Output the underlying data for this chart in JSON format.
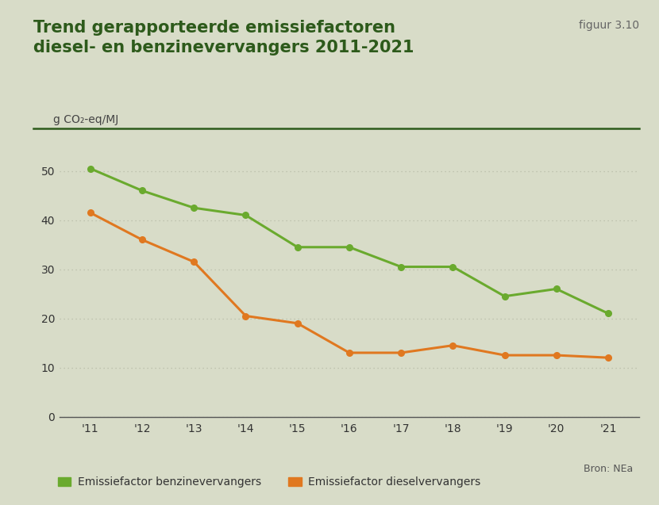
{
  "title_line1": "Trend gerapporteerde emissiefactoren",
  "title_line2": "diesel- en benzinevervangers 2011-2021",
  "figuur_label": "figuur 3.10",
  "years": [
    2011,
    2012,
    2013,
    2014,
    2015,
    2016,
    2017,
    2018,
    2019,
    2020,
    2021
  ],
  "year_labels": [
    "'11",
    "'12",
    "'13",
    "'14",
    "'15",
    "'16",
    "'17",
    "'18",
    "'19",
    "'20",
    "'21"
  ],
  "benzine_values": [
    50.5,
    46.0,
    42.5,
    41.0,
    34.5,
    34.5,
    30.5,
    30.5,
    24.5,
    26.0,
    21.0
  ],
  "diesel_values": [
    41.5,
    36.0,
    31.5,
    20.5,
    19.0,
    13.0,
    13.0,
    14.5,
    12.5,
    12.5,
    12.0
  ],
  "benzine_color": "#6aaa2e",
  "diesel_color": "#e07820",
  "background_color": "#d8dcc8",
  "title_color": "#2d5a1b",
  "figuur_color": "#666666",
  "ylabel_text": "g CO₂-eq/MJ",
  "yticks": [
    0,
    10,
    20,
    30,
    40,
    50
  ],
  "ylim": [
    0,
    55
  ],
  "grid_color": "#b8bca8",
  "legend_benzine": "Emissiefactor benzinevervangers",
  "legend_diesel": "Emissiefactor dieselvervangers",
  "source_text": "Bron: NEa",
  "separator_color": "#2d5a1b",
  "title_fontsize": 15,
  "axis_fontsize": 10,
  "legend_fontsize": 10,
  "figuur_fontsize": 10
}
